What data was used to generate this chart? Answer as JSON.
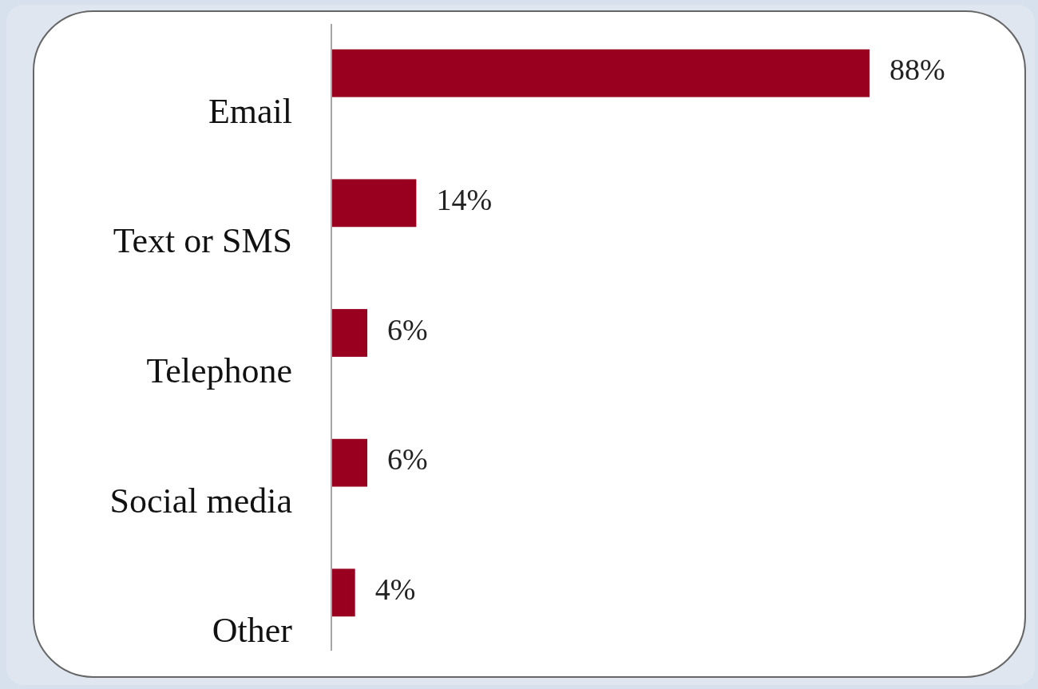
{
  "chart_data": {
    "type": "bar",
    "orientation": "horizontal",
    "categories": [
      "Email",
      "Text or SMS",
      "Telephone",
      "Social media",
      "Other"
    ],
    "values": [
      88,
      14,
      6,
      6,
      4
    ],
    "color": "#990020",
    "data_labels": true,
    "value_labels": [
      "88%",
      "14%",
      "6%",
      "6%",
      "4%"
    ]
  }
}
